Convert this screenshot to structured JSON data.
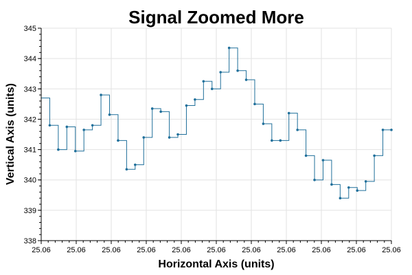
{
  "chart_data": {
    "type": "line",
    "title": "Signal Zoomed More",
    "xlabel": "Horizontal Axis (units)",
    "ylabel": "Vertical Axis (units)",
    "x_tick_labels": [
      "25.06",
      "25.06",
      "25.06",
      "25.06",
      "25.06",
      "25.06",
      "25.06",
      "25.06",
      "25.06",
      "25.06",
      "25.06"
    ],
    "y_ticks": [
      338,
      339,
      340,
      341,
      342,
      343,
      344,
      345
    ],
    "ylim": [
      338,
      345
    ],
    "grid": true,
    "step": "post",
    "series": [
      {
        "color": "#1f6f9a",
        "values": [
          342.7,
          341.8,
          341.0,
          341.75,
          340.95,
          341.65,
          341.8,
          342.8,
          342.15,
          341.3,
          340.35,
          340.5,
          341.4,
          342.35,
          342.25,
          341.4,
          341.5,
          342.45,
          342.65,
          343.25,
          343.0,
          343.55,
          344.35,
          343.6,
          343.3,
          342.5,
          341.85,
          341.3,
          341.3,
          342.2,
          341.65,
          340.8,
          340.0,
          340.65,
          339.85,
          339.4,
          339.75,
          339.65,
          339.95,
          340.8,
          341.65,
          341.65
        ]
      }
    ]
  }
}
